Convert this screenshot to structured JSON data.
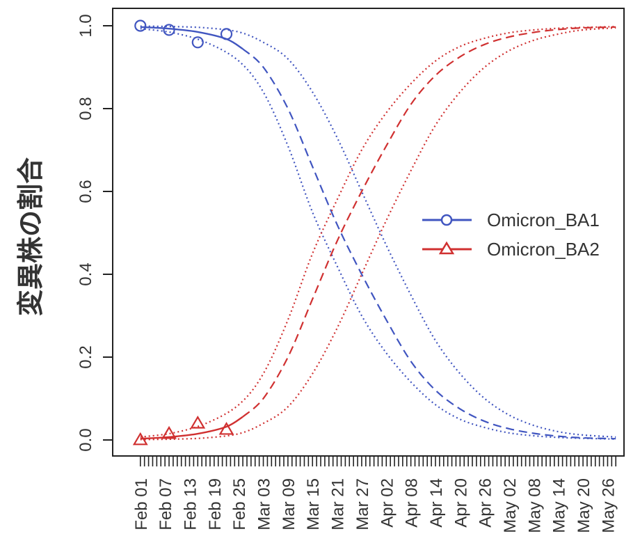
{
  "chart_data": {
    "type": "line",
    "title": "",
    "xlabel": "",
    "ylabel": "変異株の割合",
    "ylim": [
      0,
      1
    ],
    "yticks": [
      "0.0",
      "0.2",
      "0.4",
      "0.6",
      "0.8",
      "1.0"
    ],
    "xlim": [
      "2022-01-30",
      "2022-05-30"
    ],
    "xtick_labels": [
      "Feb 01",
      "Feb 07",
      "Feb 13",
      "Feb 19",
      "Feb 25",
      "Mar 03",
      "Mar 09",
      "Mar 15",
      "Mar 21",
      "Mar 27",
      "Apr 02",
      "Apr 08",
      "Apr 14",
      "Apr 20",
      "Apr 26",
      "May 02",
      "May 08",
      "May 14",
      "May 20",
      "May 26"
    ],
    "xtick_dates": [
      "2022-02-01",
      "2022-02-07",
      "2022-02-13",
      "2022-02-19",
      "2022-02-25",
      "2022-03-03",
      "2022-03-09",
      "2022-03-15",
      "2022-03-21",
      "2022-03-27",
      "2022-04-02",
      "2022-04-08",
      "2022-04-14",
      "2022-04-20",
      "2022-04-26",
      "2022-05-02",
      "2022-05-08",
      "2022-05-14",
      "2022-05-20",
      "2022-05-26"
    ],
    "minor_ticks": "daily",
    "grid": false,
    "legend": "right",
    "series": [
      {
        "name": "Omicron_BA1",
        "color": "#4055c0",
        "marker": "circle",
        "observed": [
          {
            "x": "2022-02-01",
            "y": 1.0
          },
          {
            "x": "2022-02-08",
            "y": 0.99
          },
          {
            "x": "2022-02-15",
            "y": 0.96
          },
          {
            "x": "2022-02-22",
            "y": 0.98
          }
        ],
        "fit_solid": [
          {
            "x": "2022-02-01",
            "y": 0.997
          },
          {
            "x": "2022-02-08",
            "y": 0.993
          },
          {
            "x": "2022-02-15",
            "y": 0.985
          },
          {
            "x": "2022-02-22",
            "y": 0.968
          },
          {
            "x": "2022-02-26",
            "y": 0.944
          }
        ],
        "fit_dashed": [
          {
            "x": "2022-02-26",
            "y": 0.944
          },
          {
            "x": "2022-03-03",
            "y": 0.9
          },
          {
            "x": "2022-03-09",
            "y": 0.8
          },
          {
            "x": "2022-03-15",
            "y": 0.66
          },
          {
            "x": "2022-03-21",
            "y": 0.52
          },
          {
            "x": "2022-03-27",
            "y": 0.4
          },
          {
            "x": "2022-04-02",
            "y": 0.29
          },
          {
            "x": "2022-04-08",
            "y": 0.19
          },
          {
            "x": "2022-04-14",
            "y": 0.12
          },
          {
            "x": "2022-04-20",
            "y": 0.075
          },
          {
            "x": "2022-04-26",
            "y": 0.045
          },
          {
            "x": "2022-05-02",
            "y": 0.027
          },
          {
            "x": "2022-05-08",
            "y": 0.016
          },
          {
            "x": "2022-05-14",
            "y": 0.009
          },
          {
            "x": "2022-05-20",
            "y": 0.005
          },
          {
            "x": "2022-05-28",
            "y": 0.003
          }
        ],
        "ci_upper": [
          {
            "x": "2022-02-01",
            "y": 0.999
          },
          {
            "x": "2022-02-09",
            "y": 0.998
          },
          {
            "x": "2022-02-17",
            "y": 0.995
          },
          {
            "x": "2022-02-25",
            "y": 0.985
          },
          {
            "x": "2022-03-03",
            "y": 0.96
          },
          {
            "x": "2022-03-09",
            "y": 0.92
          },
          {
            "x": "2022-03-15",
            "y": 0.84
          },
          {
            "x": "2022-03-21",
            "y": 0.73
          },
          {
            "x": "2022-03-27",
            "y": 0.6
          },
          {
            "x": "2022-04-02",
            "y": 0.47
          },
          {
            "x": "2022-04-08",
            "y": 0.35
          },
          {
            "x": "2022-04-14",
            "y": 0.24
          },
          {
            "x": "2022-04-20",
            "y": 0.16
          },
          {
            "x": "2022-04-26",
            "y": 0.1
          },
          {
            "x": "2022-05-02",
            "y": 0.06
          },
          {
            "x": "2022-05-08",
            "y": 0.035
          },
          {
            "x": "2022-05-14",
            "y": 0.02
          },
          {
            "x": "2022-05-20",
            "y": 0.012
          },
          {
            "x": "2022-05-28",
            "y": 0.007
          }
        ],
        "ci_lower": [
          {
            "x": "2022-02-01",
            "y": 0.993
          },
          {
            "x": "2022-02-09",
            "y": 0.983
          },
          {
            "x": "2022-02-17",
            "y": 0.96
          },
          {
            "x": "2022-02-25",
            "y": 0.915
          },
          {
            "x": "2022-03-03",
            "y": 0.84
          },
          {
            "x": "2022-03-09",
            "y": 0.71
          },
          {
            "x": "2022-03-15",
            "y": 0.55
          },
          {
            "x": "2022-03-21",
            "y": 0.42
          },
          {
            "x": "2022-03-27",
            "y": 0.3
          },
          {
            "x": "2022-04-02",
            "y": 0.21
          },
          {
            "x": "2022-04-08",
            "y": 0.14
          },
          {
            "x": "2022-04-14",
            "y": 0.085
          },
          {
            "x": "2022-04-20",
            "y": 0.05
          },
          {
            "x": "2022-04-26",
            "y": 0.03
          },
          {
            "x": "2022-05-02",
            "y": 0.017
          },
          {
            "x": "2022-05-08",
            "y": 0.01
          },
          {
            "x": "2022-05-14",
            "y": 0.006
          },
          {
            "x": "2022-05-20",
            "y": 0.004
          },
          {
            "x": "2022-05-28",
            "y": 0.002
          }
        ]
      },
      {
        "name": "Omicron_BA2",
        "color": "#d03030",
        "marker": "triangle",
        "observed": [
          {
            "x": "2022-02-01",
            "y": 0.0
          },
          {
            "x": "2022-02-08",
            "y": 0.015
          },
          {
            "x": "2022-02-15",
            "y": 0.04
          },
          {
            "x": "2022-02-22",
            "y": 0.025
          }
        ],
        "fit_solid": [
          {
            "x": "2022-02-01",
            "y": 0.003
          },
          {
            "x": "2022-02-08",
            "y": 0.007
          },
          {
            "x": "2022-02-15",
            "y": 0.015
          },
          {
            "x": "2022-02-22",
            "y": 0.032
          },
          {
            "x": "2022-02-26",
            "y": 0.056
          }
        ],
        "fit_dashed": [
          {
            "x": "2022-02-26",
            "y": 0.056
          },
          {
            "x": "2022-03-03",
            "y": 0.1
          },
          {
            "x": "2022-03-09",
            "y": 0.2
          },
          {
            "x": "2022-03-15",
            "y": 0.34
          },
          {
            "x": "2022-03-21",
            "y": 0.48
          },
          {
            "x": "2022-03-27",
            "y": 0.6
          },
          {
            "x": "2022-04-02",
            "y": 0.71
          },
          {
            "x": "2022-04-08",
            "y": 0.81
          },
          {
            "x": "2022-04-14",
            "y": 0.88
          },
          {
            "x": "2022-04-20",
            "y": 0.925
          },
          {
            "x": "2022-04-26",
            "y": 0.955
          },
          {
            "x": "2022-05-02",
            "y": 0.973
          },
          {
            "x": "2022-05-08",
            "y": 0.984
          },
          {
            "x": "2022-05-14",
            "y": 0.991
          },
          {
            "x": "2022-05-20",
            "y": 0.995
          },
          {
            "x": "2022-05-28",
            "y": 0.997
          }
        ],
        "ci_upper": [
          {
            "x": "2022-02-01",
            "y": 0.007
          },
          {
            "x": "2022-02-09",
            "y": 0.017
          },
          {
            "x": "2022-02-17",
            "y": 0.04
          },
          {
            "x": "2022-02-25",
            "y": 0.085
          },
          {
            "x": "2022-03-03",
            "y": 0.16
          },
          {
            "x": "2022-03-09",
            "y": 0.29
          },
          {
            "x": "2022-03-15",
            "y": 0.45
          },
          {
            "x": "2022-03-21",
            "y": 0.58
          },
          {
            "x": "2022-03-27",
            "y": 0.7
          },
          {
            "x": "2022-04-02",
            "y": 0.79
          },
          {
            "x": "2022-04-08",
            "y": 0.86
          },
          {
            "x": "2022-04-14",
            "y": 0.915
          },
          {
            "x": "2022-04-20",
            "y": 0.95
          },
          {
            "x": "2022-04-26",
            "y": 0.97
          },
          {
            "x": "2022-05-02",
            "y": 0.983
          },
          {
            "x": "2022-05-08",
            "y": 0.99
          },
          {
            "x": "2022-05-14",
            "y": 0.994
          },
          {
            "x": "2022-05-20",
            "y": 0.996
          },
          {
            "x": "2022-05-28",
            "y": 0.998
          }
        ],
        "ci_lower": [
          {
            "x": "2022-02-01",
            "y": 0.001
          },
          {
            "x": "2022-02-09",
            "y": 0.002
          },
          {
            "x": "2022-02-17",
            "y": 0.005
          },
          {
            "x": "2022-02-25",
            "y": 0.015
          },
          {
            "x": "2022-03-03",
            "y": 0.04
          },
          {
            "x": "2022-03-09",
            "y": 0.08
          },
          {
            "x": "2022-03-15",
            "y": 0.16
          },
          {
            "x": "2022-03-21",
            "y": 0.27
          },
          {
            "x": "2022-03-27",
            "y": 0.4
          },
          {
            "x": "2022-04-02",
            "y": 0.53
          },
          {
            "x": "2022-04-08",
            "y": 0.65
          },
          {
            "x": "2022-04-14",
            "y": 0.76
          },
          {
            "x": "2022-04-20",
            "y": 0.84
          },
          {
            "x": "2022-04-26",
            "y": 0.9
          },
          {
            "x": "2022-05-02",
            "y": 0.94
          },
          {
            "x": "2022-05-08",
            "y": 0.965
          },
          {
            "x": "2022-05-14",
            "y": 0.98
          },
          {
            "x": "2022-05-20",
            "y": 0.99
          },
          {
            "x": "2022-05-28",
            "y": 0.995
          }
        ]
      }
    ]
  }
}
